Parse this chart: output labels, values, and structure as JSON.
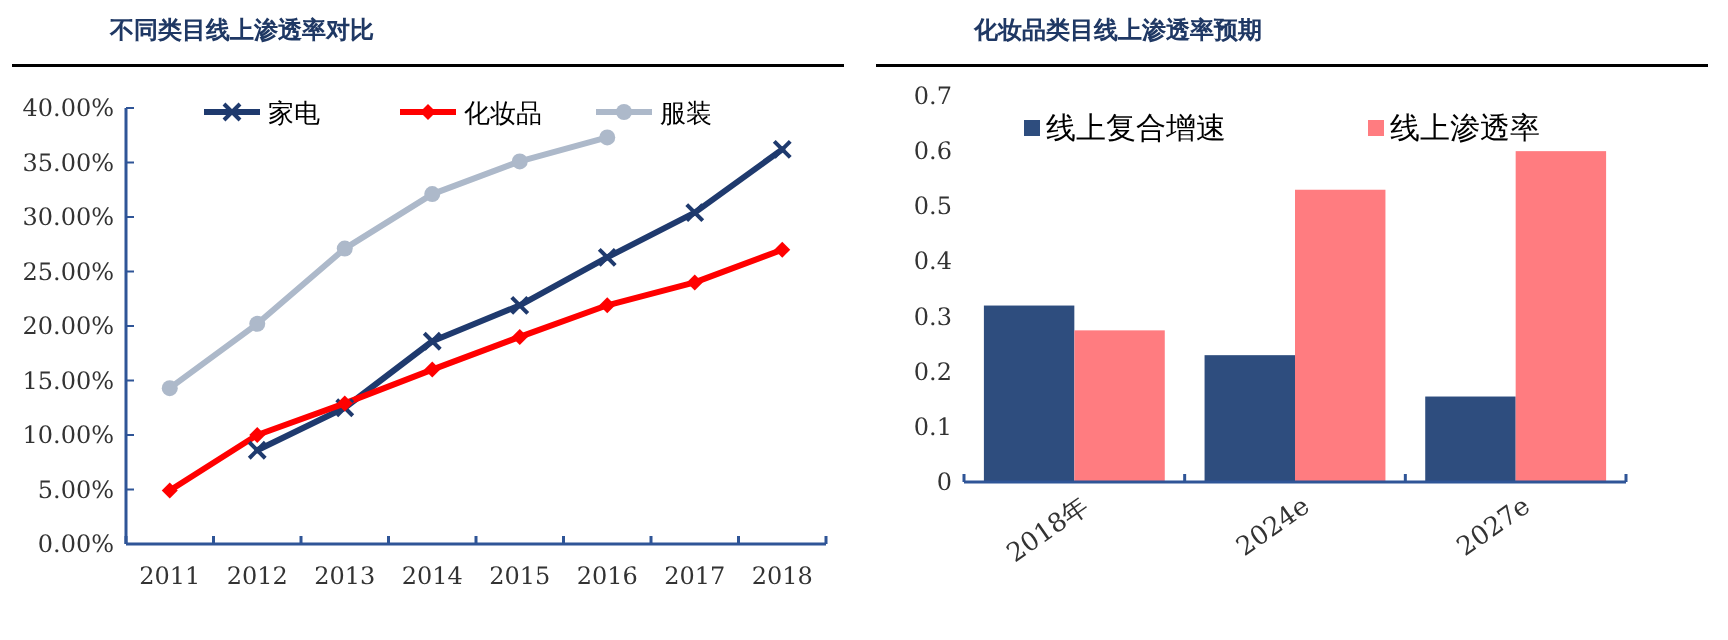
{
  "chart_data": [
    {
      "type": "line",
      "title": "不同类目线上渗透率对比",
      "categories": [
        "2011",
        "2012",
        "2013",
        "2014",
        "2015",
        "2016",
        "2017",
        "2018"
      ],
      "series": [
        {
          "name": "家电",
          "color": "#1f3a6e",
          "marker": "cross",
          "values": [
            null,
            8.6,
            12.5,
            18.6,
            21.9,
            26.3,
            30.4,
            36.2
          ]
        },
        {
          "name": "化妆品",
          "color": "#ff0000",
          "marker": "diamond",
          "values": [
            4.9,
            10.0,
            12.9,
            16.0,
            19.0,
            21.9,
            24.0,
            27.0
          ]
        },
        {
          "name": "服装",
          "color": "#adb9ca",
          "marker": "circle",
          "values": [
            14.3,
            20.2,
            27.1,
            32.1,
            35.1,
            37.3,
            null,
            null
          ]
        }
      ],
      "ylim": [
        0,
        40
      ],
      "yticks": [
        {
          "value": 0,
          "label": "0.00%"
        },
        {
          "value": 5,
          "label": "5.00%"
        },
        {
          "value": 10,
          "label": "10.00%"
        },
        {
          "value": 15,
          "label": "15.00%"
        },
        {
          "value": 20,
          "label": "20.00%"
        },
        {
          "value": 25,
          "label": "25.00%"
        },
        {
          "value": 30,
          "label": "30.00%"
        },
        {
          "value": 35,
          "label": "35.00%"
        },
        {
          "value": 40,
          "label": "40.00%"
        }
      ],
      "grid": false,
      "legend": "top"
    },
    {
      "type": "bar",
      "title": "化妆品类目线上渗透率预期",
      "categories": [
        "2018年",
        "2024e",
        "2027e"
      ],
      "series": [
        {
          "name": "线上复合增速",
          "color": "#2e4d7e",
          "values": [
            0.32,
            0.23,
            0.155
          ]
        },
        {
          "name": "线上渗透率",
          "color": "#ff7c80",
          "values": [
            0.275,
            0.53,
            0.6
          ]
        }
      ],
      "ylim": [
        0,
        0.7
      ],
      "yticks": [
        0,
        0.1,
        0.2,
        0.3,
        0.4,
        0.5,
        0.6,
        0.7
      ],
      "grid": false,
      "legend": "top"
    }
  ]
}
